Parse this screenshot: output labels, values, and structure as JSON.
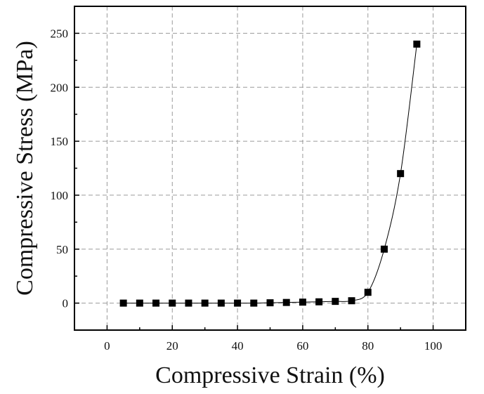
{
  "chart_data": {
    "type": "line",
    "xlabel": "Compressive Strain (%)",
    "ylabel": "Compressive Stress (MPa)",
    "xlim": [
      -10,
      110
    ],
    "ylim": [
      -25,
      275
    ],
    "xticks": [
      0,
      20,
      40,
      60,
      80,
      100
    ],
    "yticks": [
      0,
      50,
      100,
      150,
      200,
      250
    ],
    "grid": true,
    "legend": "none",
    "series": [
      {
        "x": [
          5,
          10,
          15,
          20,
          25,
          30,
          35,
          40,
          45,
          50,
          55,
          60,
          65,
          70,
          75,
          80,
          85,
          90,
          95
        ],
        "y": [
          0,
          0,
          0,
          0,
          0,
          0,
          0,
          0,
          0,
          0.3,
          0.6,
          0.9,
          1.2,
          1.6,
          2.2,
          10,
          50,
          120,
          240
        ],
        "marker": "square",
        "color": "#000000"
      }
    ]
  }
}
